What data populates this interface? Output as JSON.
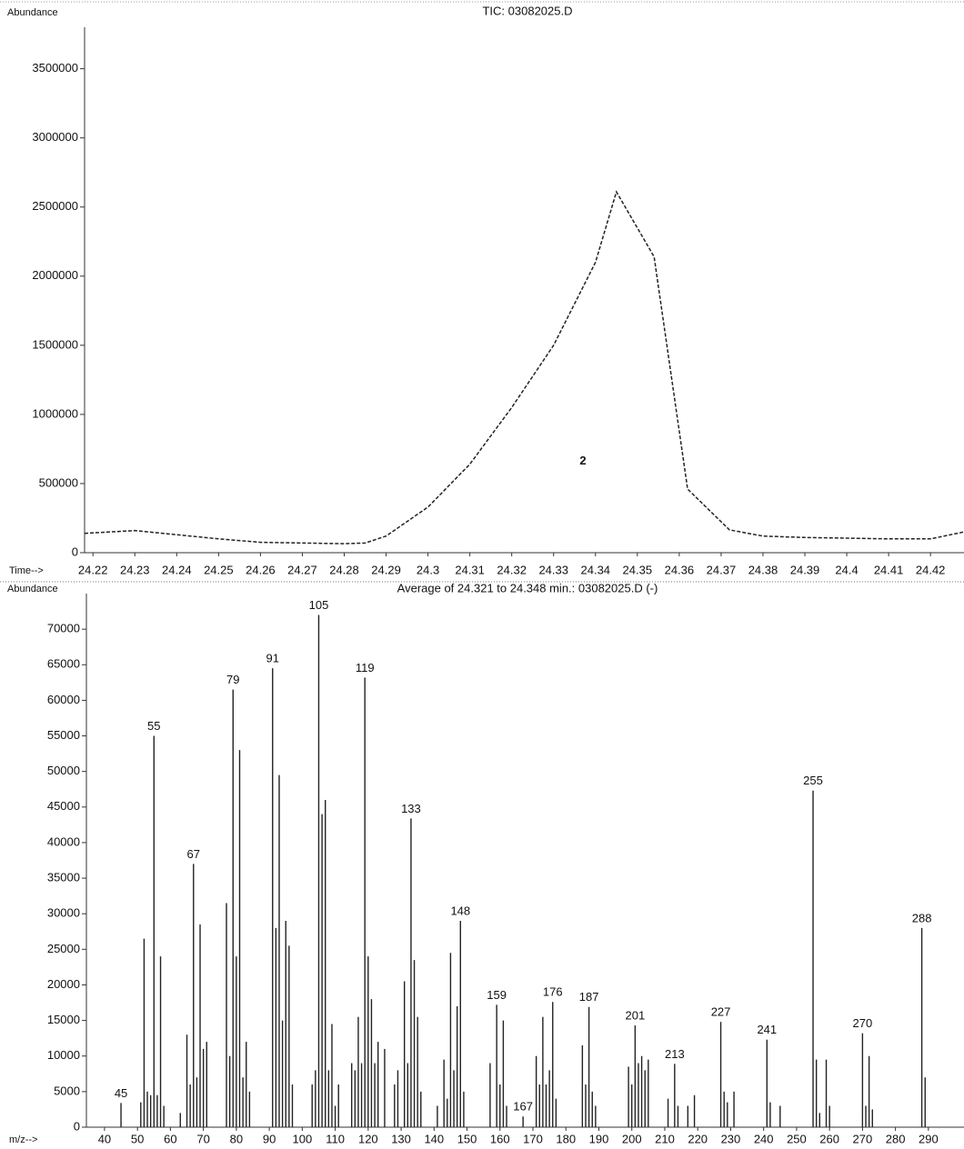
{
  "chart_data": [
    {
      "type": "line",
      "title": "TIC: 03082025.D",
      "y_label": "Abundance",
      "x_label": "Time-->",
      "color": "#222222",
      "x": [
        24.218,
        24.23,
        24.24,
        24.25,
        24.26,
        24.27,
        24.28,
        24.285,
        24.29,
        24.3,
        24.31,
        24.32,
        24.33,
        24.34,
        24.345,
        24.354,
        24.362,
        24.372,
        24.38,
        24.39,
        24.4,
        24.41,
        24.42,
        24.428
      ],
      "values": [
        140000,
        160000,
        130000,
        100000,
        75000,
        70000,
        65000,
        70000,
        120000,
        330000,
        640000,
        1050000,
        1500000,
        2100000,
        2610000,
        2140000,
        460000,
        165000,
        120000,
        110000,
        105000,
        100000,
        100000,
        150000
      ],
      "xlim": [
        24.218,
        24.428
      ],
      "xticks": [
        24.22,
        24.23,
        24.24,
        24.25,
        24.26,
        24.27,
        24.28,
        24.29,
        24.3,
        24.31,
        24.32,
        24.33,
        24.34,
        24.35,
        24.36,
        24.37,
        24.38,
        24.39,
        24.4,
        24.41,
        24.42
      ],
      "ylim": [
        0,
        3800000
      ],
      "yticks": [
        0,
        500000,
        1000000,
        1500000,
        2000000,
        2500000,
        3000000,
        3500000
      ],
      "annotations": [
        {
          "text": "2",
          "x": 24.337,
          "y": 660000
        }
      ]
    },
    {
      "type": "stick",
      "title": "Average of 24.321 to 24.348 min.: 03082025.D (-)",
      "y_label": "Abundance",
      "x_label": "m/z-->",
      "color": "#222222",
      "x": [
        45,
        51,
        52,
        53,
        54,
        55,
        56,
        57,
        58,
        63,
        65,
        66,
        67,
        68,
        69,
        70,
        71,
        77,
        78,
        79,
        80,
        81,
        82,
        83,
        84,
        91,
        92,
        93,
        94,
        95,
        96,
        97,
        103,
        104,
        105,
        106,
        107,
        108,
        109,
        110,
        111,
        115,
        116,
        117,
        118,
        119,
        120,
        121,
        122,
        123,
        125,
        128,
        129,
        131,
        132,
        133,
        134,
        135,
        136,
        141,
        143,
        144,
        145,
        146,
        147,
        148,
        149,
        157,
        159,
        160,
        161,
        162,
        167,
        171,
        172,
        173,
        174,
        175,
        176,
        177,
        185,
        186,
        187,
        188,
        189,
        199,
        200,
        201,
        202,
        203,
        204,
        205,
        211,
        213,
        214,
        217,
        219,
        227,
        228,
        229,
        231,
        241,
        242,
        245,
        255,
        256,
        257,
        259,
        260,
        270,
        271,
        272,
        273,
        288,
        289
      ],
      "values": [
        3400,
        3500,
        26500,
        5000,
        4500,
        55000,
        4500,
        24000,
        3000,
        2000,
        13000,
        6000,
        37000,
        7000,
        28500,
        11000,
        12000,
        31500,
        10000,
        61500,
        24000,
        53000,
        7000,
        12000,
        5000,
        64500,
        28000,
        49500,
        15000,
        29000,
        25500,
        6000,
        6000,
        8000,
        72000,
        44000,
        46000,
        8000,
        14500,
        3000,
        6000,
        9000,
        8000,
        15500,
        9000,
        63200,
        24000,
        18000,
        9000,
        12000,
        11000,
        6000,
        8000,
        20500,
        9000,
        43400,
        23500,
        15500,
        5000,
        3000,
        9500,
        4000,
        24500,
        8000,
        17000,
        29000,
        5000,
        9000,
        17200,
        6000,
        15000,
        3000,
        1500,
        10000,
        6000,
        15500,
        6000,
        8000,
        17600,
        4000,
        11500,
        6000,
        16900,
        5000,
        3000,
        8500,
        6000,
        14300,
        9000,
        10000,
        8000,
        9500,
        4000,
        8900,
        3000,
        3000,
        4500,
        14800,
        5000,
        3500,
        5000,
        12300,
        3500,
        3000,
        47300,
        9500,
        2000,
        9500,
        3000,
        13200,
        3000,
        10000,
        2500,
        28000,
        7000
      ],
      "peak_labels": [
        "45",
        null,
        null,
        null,
        null,
        "55",
        null,
        null,
        null,
        null,
        null,
        null,
        "67",
        null,
        null,
        null,
        null,
        null,
        null,
        "79",
        null,
        null,
        null,
        null,
        null,
        "91",
        null,
        null,
        null,
        null,
        null,
        null,
        null,
        null,
        "105",
        null,
        null,
        null,
        null,
        null,
        null,
        null,
        null,
        null,
        null,
        "119",
        null,
        null,
        null,
        null,
        null,
        null,
        null,
        null,
        null,
        "133",
        null,
        null,
        null,
        null,
        null,
        null,
        null,
        null,
        null,
        "148",
        null,
        null,
        "159",
        null,
        null,
        null,
        "167",
        null,
        null,
        null,
        null,
        null,
        "176",
        null,
        null,
        null,
        "187",
        null,
        null,
        null,
        null,
        "201",
        null,
        null,
        null,
        null,
        null,
        "213",
        null,
        null,
        null,
        "227",
        null,
        null,
        null,
        "241",
        null,
        null,
        "255",
        null,
        null,
        null,
        null,
        "270",
        null,
        null,
        null,
        "288",
        null
      ],
      "xlim": [
        34.5,
        300.8
      ],
      "xticks": [
        40,
        50,
        60,
        70,
        80,
        90,
        100,
        110,
        120,
        130,
        140,
        150,
        160,
        170,
        180,
        190,
        200,
        210,
        220,
        230,
        240,
        250,
        260,
        270,
        280,
        290
      ],
      "ylim": [
        0,
        75000
      ],
      "yticks": [
        0,
        5000,
        10000,
        15000,
        20000,
        25000,
        30000,
        35000,
        40000,
        45000,
        50000,
        55000,
        60000,
        65000,
        70000
      ]
    }
  ]
}
